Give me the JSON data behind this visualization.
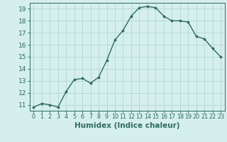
{
  "x": [
    0,
    1,
    2,
    3,
    4,
    5,
    6,
    7,
    8,
    9,
    10,
    11,
    12,
    13,
    14,
    15,
    16,
    17,
    18,
    19,
    20,
    21,
    22,
    23
  ],
  "y": [
    10.8,
    11.1,
    11.0,
    10.8,
    12.1,
    13.1,
    13.2,
    12.8,
    13.3,
    14.7,
    16.4,
    17.2,
    18.4,
    19.1,
    19.2,
    19.1,
    18.4,
    18.0,
    18.0,
    17.9,
    16.7,
    16.5,
    15.7,
    15.0
  ],
  "line_color": "#2e6b5e",
  "marker": "o",
  "marker_size": 2.2,
  "bg_color": "#d5efed",
  "grid_color": "#b2d8d5",
  "xlabel": "Humidex (Indice chaleur)",
  "xlim": [
    -0.5,
    23.5
  ],
  "ylim": [
    10.5,
    19.5
  ],
  "yticks": [
    11,
    12,
    13,
    14,
    15,
    16,
    17,
    18,
    19
  ],
  "xticks": [
    0,
    1,
    2,
    3,
    4,
    5,
    6,
    7,
    8,
    9,
    10,
    11,
    12,
    13,
    14,
    15,
    16,
    17,
    18,
    19,
    20,
    21,
    22,
    23
  ],
  "xlabel_fontsize": 7.5,
  "ytick_fontsize": 6.5,
  "xtick_fontsize": 5.8,
  "axis_color": "#2e6b5e",
  "linewidth": 1.0
}
